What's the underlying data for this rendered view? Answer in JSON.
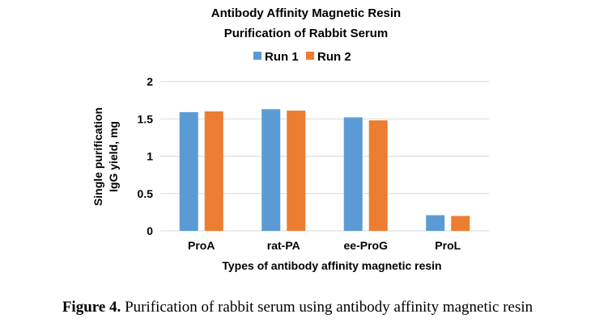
{
  "chart_data": {
    "type": "bar",
    "title_lines": [
      "Antibody Affinity Magnetic Resin",
      "Purification of Rabbit Serum"
    ],
    "categories": [
      "ProA",
      "rat-PA",
      "ee-ProG",
      "ProL"
    ],
    "series": [
      {
        "name": "Run 1",
        "color": "#5b9bd5",
        "values": [
          1.59,
          1.63,
          1.52,
          0.21
        ]
      },
      {
        "name": "Run 2",
        "color": "#ed7d31",
        "values": [
          1.6,
          1.61,
          1.48,
          0.2
        ]
      }
    ],
    "xlabel": "Types of antibody affinity magnetic resin",
    "ylabel_lines": [
      "Single purification",
      "IgG yield, mg"
    ],
    "ylim": [
      0,
      2
    ],
    "yticks": [
      "0",
      "0.5",
      "1",
      "1.5",
      "2"
    ],
    "grid": true,
    "legend_position": "top-center",
    "gridline_color": "#d9d9d9"
  },
  "caption": {
    "label": "Figure 4.",
    "text": " Purification of rabbit serum using antibody affinity magnetic resin"
  }
}
